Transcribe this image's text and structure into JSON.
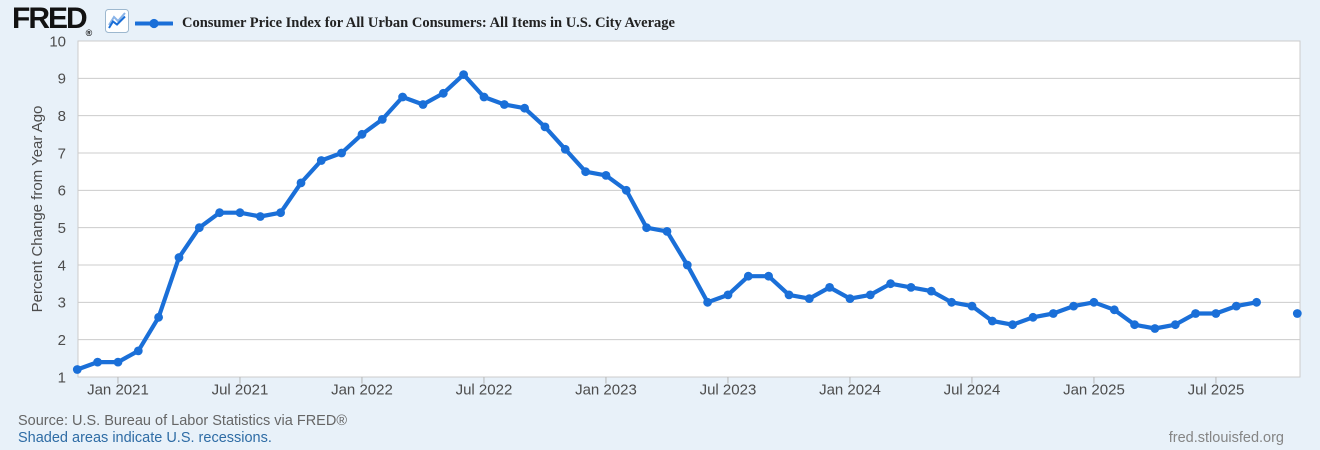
{
  "header": {
    "logo_text": "FRED",
    "registered_mark": "®"
  },
  "footer": {
    "source_text": "Source: U.S. Bureau of Labor Statistics via FRED®",
    "recession_note": "Shaded areas indicate U.S. recessions.",
    "site_url": "fred.stlouisfed.org"
  },
  "colors": {
    "background": "#e8f1f9",
    "plot_background": "#ffffff",
    "line": "#1a6fd8",
    "grid": "#cccccc",
    "tick_mark": "#b6b6b6",
    "axis_text": "#4d4d4d",
    "title_text": "#222222",
    "link": "#2e6ca5"
  },
  "chart_data": {
    "type": "line",
    "title": "Consumer Price Index for All Urban Consumers: All Items in U.S. City Average",
    "ylabel": "Percent Change from Year Ago",
    "xlabel": "",
    "ylim": [
      1,
      10
    ],
    "y_ticks": [
      1,
      2,
      3,
      4,
      5,
      6,
      7,
      8,
      9,
      10
    ],
    "grid": true,
    "legend_position": "top-left",
    "frequency": "monthly",
    "x_start": "2020-11",
    "x_end": "2025-11",
    "x_tick_labels": [
      "Jan 2021",
      "Jul 2021",
      "Jan 2022",
      "Jul 2022",
      "Jan 2023",
      "Jul 2023",
      "Jan 2024",
      "Jul 2024",
      "Jan 2025",
      "Jul 2025"
    ],
    "x_tick_indices": [
      2,
      8,
      14,
      20,
      26,
      32,
      38,
      44,
      50,
      56
    ],
    "series": [
      {
        "name": "Consumer Price Index for All Urban Consumers: All Items in U.S. City Average",
        "units": "Percent Change from Year Ago",
        "values": [
          1.2,
          1.4,
          1.4,
          1.7,
          2.6,
          4.2,
          5.0,
          5.4,
          5.4,
          5.3,
          5.4,
          6.2,
          6.8,
          7.0,
          7.5,
          7.9,
          8.5,
          8.3,
          8.6,
          9.1,
          8.5,
          8.3,
          8.2,
          7.7,
          7.1,
          6.5,
          6.4,
          6.0,
          5.0,
          4.9,
          4.0,
          3.0,
          3.2,
          3.7,
          3.7,
          3.2,
          3.1,
          3.4,
          3.1,
          3.2,
          3.5,
          3.4,
          3.3,
          3.0,
          2.9,
          2.5,
          2.4,
          2.6,
          2.7,
          2.9,
          3.0,
          2.8,
          2.4,
          2.3,
          2.4,
          2.7,
          2.7,
          2.9,
          3.0,
          null,
          2.7
        ]
      }
    ]
  }
}
